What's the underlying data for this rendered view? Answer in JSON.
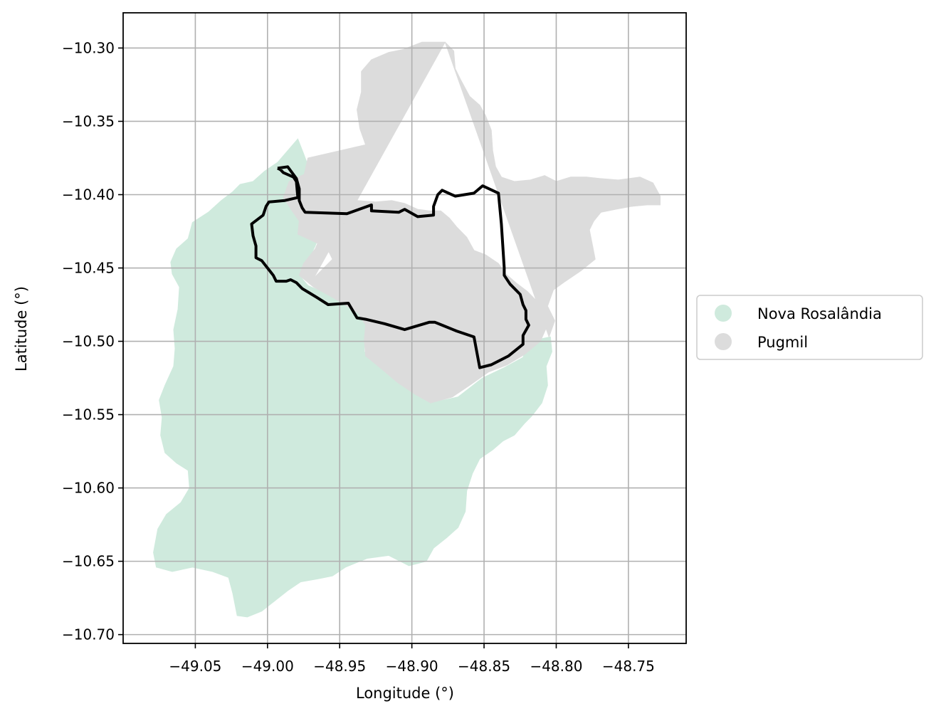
{
  "chart_data": {
    "type": "map",
    "xlabel": "Longitude (°)",
    "ylabel": "Latitude (°)",
    "xlim": [
      -49.1,
      -48.71
    ],
    "ylim": [
      -10.706,
      -10.276
    ],
    "x_ticks": [
      -49.05,
      -49.0,
      -48.95,
      -48.9,
      -48.85,
      -48.8,
      -48.75
    ],
    "x_tick_labels": [
      "−49.05",
      "−49.00",
      "−48.95",
      "−48.90",
      "−48.85",
      "−48.80",
      "−48.75"
    ],
    "y_ticks": [
      -10.3,
      -10.35,
      -10.4,
      -10.45,
      -10.5,
      -10.55,
      -10.6,
      -10.65,
      -10.7
    ],
    "y_tick_labels": [
      "−10.30",
      "−10.35",
      "−10.40",
      "−10.45",
      "−10.50",
      "−10.55",
      "−10.60",
      "−10.65",
      "−10.70"
    ],
    "grid": true,
    "legend_position": "right, outside plot",
    "regions": [
      {
        "name": "Nova Rosalândia",
        "color": "#cfeadd",
        "polygon": [
          [
            -48.979,
            -10.362
          ],
          [
            -48.975,
            -10.372
          ],
          [
            -48.969,
            -10.388
          ],
          [
            -48.964,
            -10.398
          ],
          [
            -48.963,
            -10.412
          ],
          [
            -48.963,
            -10.425
          ],
          [
            -48.967,
            -10.435
          ],
          [
            -48.973,
            -10.447
          ],
          [
            -48.978,
            -10.455
          ],
          [
            -48.972,
            -10.462
          ],
          [
            -48.958,
            -10.468
          ],
          [
            -48.947,
            -10.474
          ],
          [
            -48.937,
            -10.48
          ],
          [
            -48.932,
            -10.488
          ],
          [
            -48.933,
            -10.497
          ],
          [
            -48.933,
            -10.507
          ],
          [
            -48.925,
            -10.515
          ],
          [
            -48.912,
            -10.526
          ],
          [
            -48.899,
            -10.535
          ],
          [
            -48.887,
            -10.542
          ],
          [
            -48.868,
            -10.538
          ],
          [
            -48.851,
            -10.525
          ],
          [
            -48.836,
            -10.518
          ],
          [
            -48.823,
            -10.511
          ],
          [
            -48.819,
            -10.5
          ],
          [
            -48.804,
            -10.497
          ],
          [
            -48.803,
            -10.507
          ],
          [
            -48.807,
            -10.517
          ],
          [
            -48.806,
            -10.53
          ],
          [
            -48.81,
            -10.542
          ],
          [
            -48.817,
            -10.551
          ],
          [
            -48.822,
            -10.556
          ],
          [
            -48.829,
            -10.564
          ],
          [
            -48.837,
            -10.568
          ],
          [
            -48.844,
            -10.574
          ],
          [
            -48.853,
            -10.58
          ],
          [
            -48.858,
            -10.59
          ],
          [
            -48.862,
            -10.602
          ],
          [
            -48.863,
            -10.616
          ],
          [
            -48.868,
            -10.627
          ],
          [
            -48.876,
            -10.634
          ],
          [
            -48.885,
            -10.641
          ],
          [
            -48.89,
            -10.65
          ],
          [
            -48.902,
            -10.653
          ],
          [
            -48.916,
            -10.646
          ],
          [
            -48.931,
            -10.648
          ],
          [
            -48.946,
            -10.654
          ],
          [
            -48.955,
            -10.66
          ],
          [
            -48.965,
            -10.662
          ],
          [
            -48.977,
            -10.664
          ],
          [
            -48.986,
            -10.67
          ],
          [
            -48.995,
            -10.677
          ],
          [
            -49.004,
            -10.684
          ],
          [
            -49.014,
            -10.688
          ],
          [
            -49.021,
            -10.687
          ],
          [
            -49.024,
            -10.672
          ],
          [
            -49.027,
            -10.661
          ],
          [
            -49.038,
            -10.657
          ],
          [
            -49.052,
            -10.654
          ],
          [
            -49.066,
            -10.657
          ],
          [
            -49.077,
            -10.654
          ],
          [
            -49.079,
            -10.644
          ],
          [
            -49.076,
            -10.628
          ],
          [
            -49.07,
            -10.618
          ],
          [
            -49.06,
            -10.61
          ],
          [
            -49.054,
            -10.6
          ],
          [
            -49.055,
            -10.588
          ],
          [
            -49.063,
            -10.583
          ],
          [
            -49.071,
            -10.576
          ],
          [
            -49.074,
            -10.564
          ],
          [
            -49.073,
            -10.552
          ],
          [
            -49.075,
            -10.54
          ],
          [
            -49.071,
            -10.53
          ],
          [
            -49.065,
            -10.517
          ],
          [
            -49.064,
            -10.505
          ],
          [
            -49.065,
            -10.492
          ],
          [
            -49.062,
            -10.478
          ],
          [
            -49.061,
            -10.463
          ],
          [
            -49.066,
            -10.454
          ],
          [
            -49.067,
            -10.446
          ],
          [
            -49.063,
            -10.437
          ],
          [
            -49.055,
            -10.43
          ],
          [
            -49.052,
            -10.419
          ],
          [
            -49.041,
            -10.412
          ],
          [
            -49.032,
            -10.404
          ],
          [
            -49.024,
            -10.398
          ],
          [
            -49.019,
            -10.393
          ],
          [
            -49.01,
            -10.391
          ],
          [
            -49.002,
            -10.384
          ],
          [
            -48.993,
            -10.378
          ],
          [
            -48.986,
            -10.37
          ]
        ]
      },
      {
        "name": "Pugmil",
        "color": "#dcdcdc",
        "polygon": [
          [
            -48.877,
            -10.296
          ],
          [
            -48.893,
            -10.296
          ],
          [
            -48.906,
            -10.301
          ],
          [
            -48.916,
            -10.303
          ],
          [
            -48.928,
            -10.308
          ],
          [
            -48.935,
            -10.316
          ],
          [
            -48.935,
            -10.33
          ],
          [
            -48.938,
            -10.342
          ],
          [
            -48.936,
            -10.355
          ],
          [
            -48.932,
            -10.366
          ],
          [
            -48.972,
            -10.375
          ],
          [
            -48.975,
            -10.388
          ],
          [
            -48.97,
            -10.402
          ],
          [
            -48.963,
            -10.414
          ],
          [
            -48.963,
            -10.428
          ],
          [
            -48.967,
            -10.437
          ],
          [
            -48.975,
            -10.447
          ],
          [
            -48.978,
            -10.455
          ],
          [
            -48.968,
            -10.463
          ],
          [
            -48.955,
            -10.47
          ],
          [
            -48.945,
            -10.476
          ],
          [
            -48.937,
            -10.481
          ],
          [
            -48.932,
            -10.489
          ],
          [
            -48.933,
            -10.499
          ],
          [
            -48.932,
            -10.51
          ],
          [
            -48.922,
            -10.518
          ],
          [
            -48.91,
            -10.528
          ],
          [
            -48.898,
            -10.536
          ],
          [
            -48.887,
            -10.542
          ],
          [
            -48.872,
            -10.538
          ],
          [
            -48.86,
            -10.53
          ],
          [
            -48.847,
            -10.521
          ],
          [
            -48.834,
            -10.516
          ],
          [
            -48.822,
            -10.509
          ],
          [
            -48.811,
            -10.5
          ],
          [
            -48.807,
            -10.491
          ],
          [
            -48.808,
            -10.482
          ],
          [
            -48.812,
            -10.474
          ],
          [
            -48.82,
            -10.466
          ],
          [
            -48.828,
            -10.46
          ],
          [
            -48.835,
            -10.454
          ],
          [
            -48.84,
            -10.447
          ],
          [
            -48.849,
            -10.441
          ],
          [
            -48.857,
            -10.438
          ],
          [
            -48.862,
            -10.429
          ],
          [
            -48.869,
            -10.422
          ],
          [
            -48.874,
            -10.416
          ],
          [
            -48.88,
            -10.411
          ],
          [
            -48.888,
            -10.411
          ],
          [
            -48.896,
            -10.41
          ],
          [
            -48.905,
            -10.406
          ],
          [
            -48.914,
            -10.404
          ],
          [
            -48.925,
            -10.405
          ],
          [
            -48.938,
            -10.404
          ],
          [
            -48.948,
            -10.401
          ],
          [
            -48.954,
            -10.397
          ],
          [
            -48.96,
            -10.392
          ],
          [
            -48.97,
            -10.384
          ],
          [
            -48.985,
            -10.391
          ],
          [
            -48.989,
            -10.402
          ],
          [
            -48.983,
            -10.411
          ],
          [
            -48.978,
            -10.418
          ],
          [
            -48.979,
            -10.427
          ],
          [
            -48.959,
            -10.436
          ],
          [
            -48.955,
            -10.444
          ],
          [
            -48.962,
            -10.451
          ],
          [
            -48.968,
            -10.457
          ]
        ],
        "east_extent": [
          [
            -48.877,
            -10.296
          ],
          [
            -48.871,
            -10.302
          ],
          [
            -48.87,
            -10.314
          ],
          [
            -48.866,
            -10.322
          ],
          [
            -48.86,
            -10.333
          ],
          [
            -48.853,
            -10.339
          ],
          [
            -48.849,
            -10.346
          ],
          [
            -48.845,
            -10.356
          ],
          [
            -48.844,
            -10.37
          ],
          [
            -48.842,
            -10.381
          ],
          [
            -48.838,
            -10.388
          ],
          [
            -48.829,
            -10.391
          ],
          [
            -48.818,
            -10.39
          ],
          [
            -48.808,
            -10.387
          ],
          [
            -48.8,
            -10.391
          ],
          [
            -48.79,
            -10.388
          ],
          [
            -48.779,
            -10.388
          ],
          [
            -48.77,
            -10.389
          ],
          [
            -48.757,
            -10.39
          ],
          [
            -48.742,
            -10.388
          ],
          [
            -48.733,
            -10.392
          ],
          [
            -48.728,
            -10.401
          ],
          [
            -48.728,
            -10.407
          ],
          [
            -48.737,
            -10.407
          ],
          [
            -48.748,
            -10.408
          ],
          [
            -48.759,
            -10.41
          ],
          [
            -48.769,
            -10.412
          ],
          [
            -48.774,
            -10.418
          ],
          [
            -48.777,
            -10.424
          ],
          [
            -48.775,
            -10.434
          ],
          [
            -48.773,
            -10.444
          ],
          [
            -48.783,
            -10.452
          ],
          [
            -48.795,
            -10.46
          ],
          [
            -48.802,
            -10.465
          ],
          [
            -48.806,
            -10.476
          ],
          [
            -48.801,
            -10.486
          ],
          [
            -48.805,
            -10.497
          ]
        ]
      }
    ],
    "boundary_outline": {
      "color": "#000000",
      "path": [
        [
          -48.993,
          -10.382
        ],
        [
          -48.986,
          -10.381
        ],
        [
          -48.98,
          -10.389
        ],
        [
          -48.978,
          -10.396
        ],
        [
          -48.978,
          -10.404
        ],
        [
          -48.976,
          -10.409
        ],
        [
          -48.974,
          -10.412
        ],
        [
          -48.945,
          -10.413
        ],
        [
          -48.928,
          -10.407
        ],
        [
          -48.928,
          -10.411
        ],
        [
          -48.909,
          -10.412
        ],
        [
          -48.905,
          -10.41
        ],
        [
          -48.896,
          -10.415
        ],
        [
          -48.885,
          -10.414
        ],
        [
          -48.885,
          -10.408
        ],
        [
          -48.882,
          -10.4
        ],
        [
          -48.879,
          -10.397
        ],
        [
          -48.87,
          -10.401
        ],
        [
          -48.857,
          -10.399
        ],
        [
          -48.851,
          -10.394
        ],
        [
          -48.84,
          -10.399
        ],
        [
          -48.838,
          -10.42
        ],
        [
          -48.836,
          -10.45
        ],
        [
          -48.836,
          -10.455
        ],
        [
          -48.832,
          -10.461
        ],
        [
          -48.825,
          -10.468
        ],
        [
          -48.823,
          -10.475
        ],
        [
          -48.821,
          -10.479
        ],
        [
          -48.821,
          -10.485
        ],
        [
          -48.819,
          -10.489
        ],
        [
          -48.823,
          -10.496
        ],
        [
          -48.823,
          -10.502
        ],
        [
          -48.833,
          -10.51
        ],
        [
          -48.845,
          -10.516
        ],
        [
          -48.853,
          -10.518
        ],
        [
          -48.857,
          -10.497
        ],
        [
          -48.869,
          -10.493
        ],
        [
          -48.879,
          -10.489
        ],
        [
          -48.884,
          -10.487
        ],
        [
          -48.888,
          -10.487
        ],
        [
          -48.905,
          -10.492
        ],
        [
          -48.919,
          -10.488
        ],
        [
          -48.932,
          -10.485
        ],
        [
          -48.938,
          -10.484
        ],
        [
          -48.944,
          -10.474
        ],
        [
          -48.958,
          -10.475
        ],
        [
          -48.966,
          -10.47
        ],
        [
          -48.971,
          -10.467
        ],
        [
          -48.976,
          -10.464
        ],
        [
          -48.98,
          -10.46
        ],
        [
          -48.984,
          -10.458
        ],
        [
          -48.987,
          -10.459
        ],
        [
          -48.994,
          -10.459
        ],
        [
          -48.996,
          -10.455
        ],
        [
          -49.004,
          -10.445
        ],
        [
          -49.008,
          -10.443
        ],
        [
          -49.008,
          -10.435
        ],
        [
          -49.01,
          -10.428
        ],
        [
          -49.011,
          -10.42
        ],
        [
          -49.003,
          -10.414
        ],
        [
          -49.001,
          -10.408
        ],
        [
          -48.999,
          -10.405
        ],
        [
          -48.988,
          -10.404
        ],
        [
          -48.979,
          -10.402
        ],
        [
          -48.98,
          -10.391
        ],
        [
          -48.982,
          -10.388
        ],
        [
          -48.989,
          -10.385
        ],
        [
          -48.991,
          -10.383
        ],
        [
          -48.993,
          -10.382
        ]
      ]
    }
  }
}
